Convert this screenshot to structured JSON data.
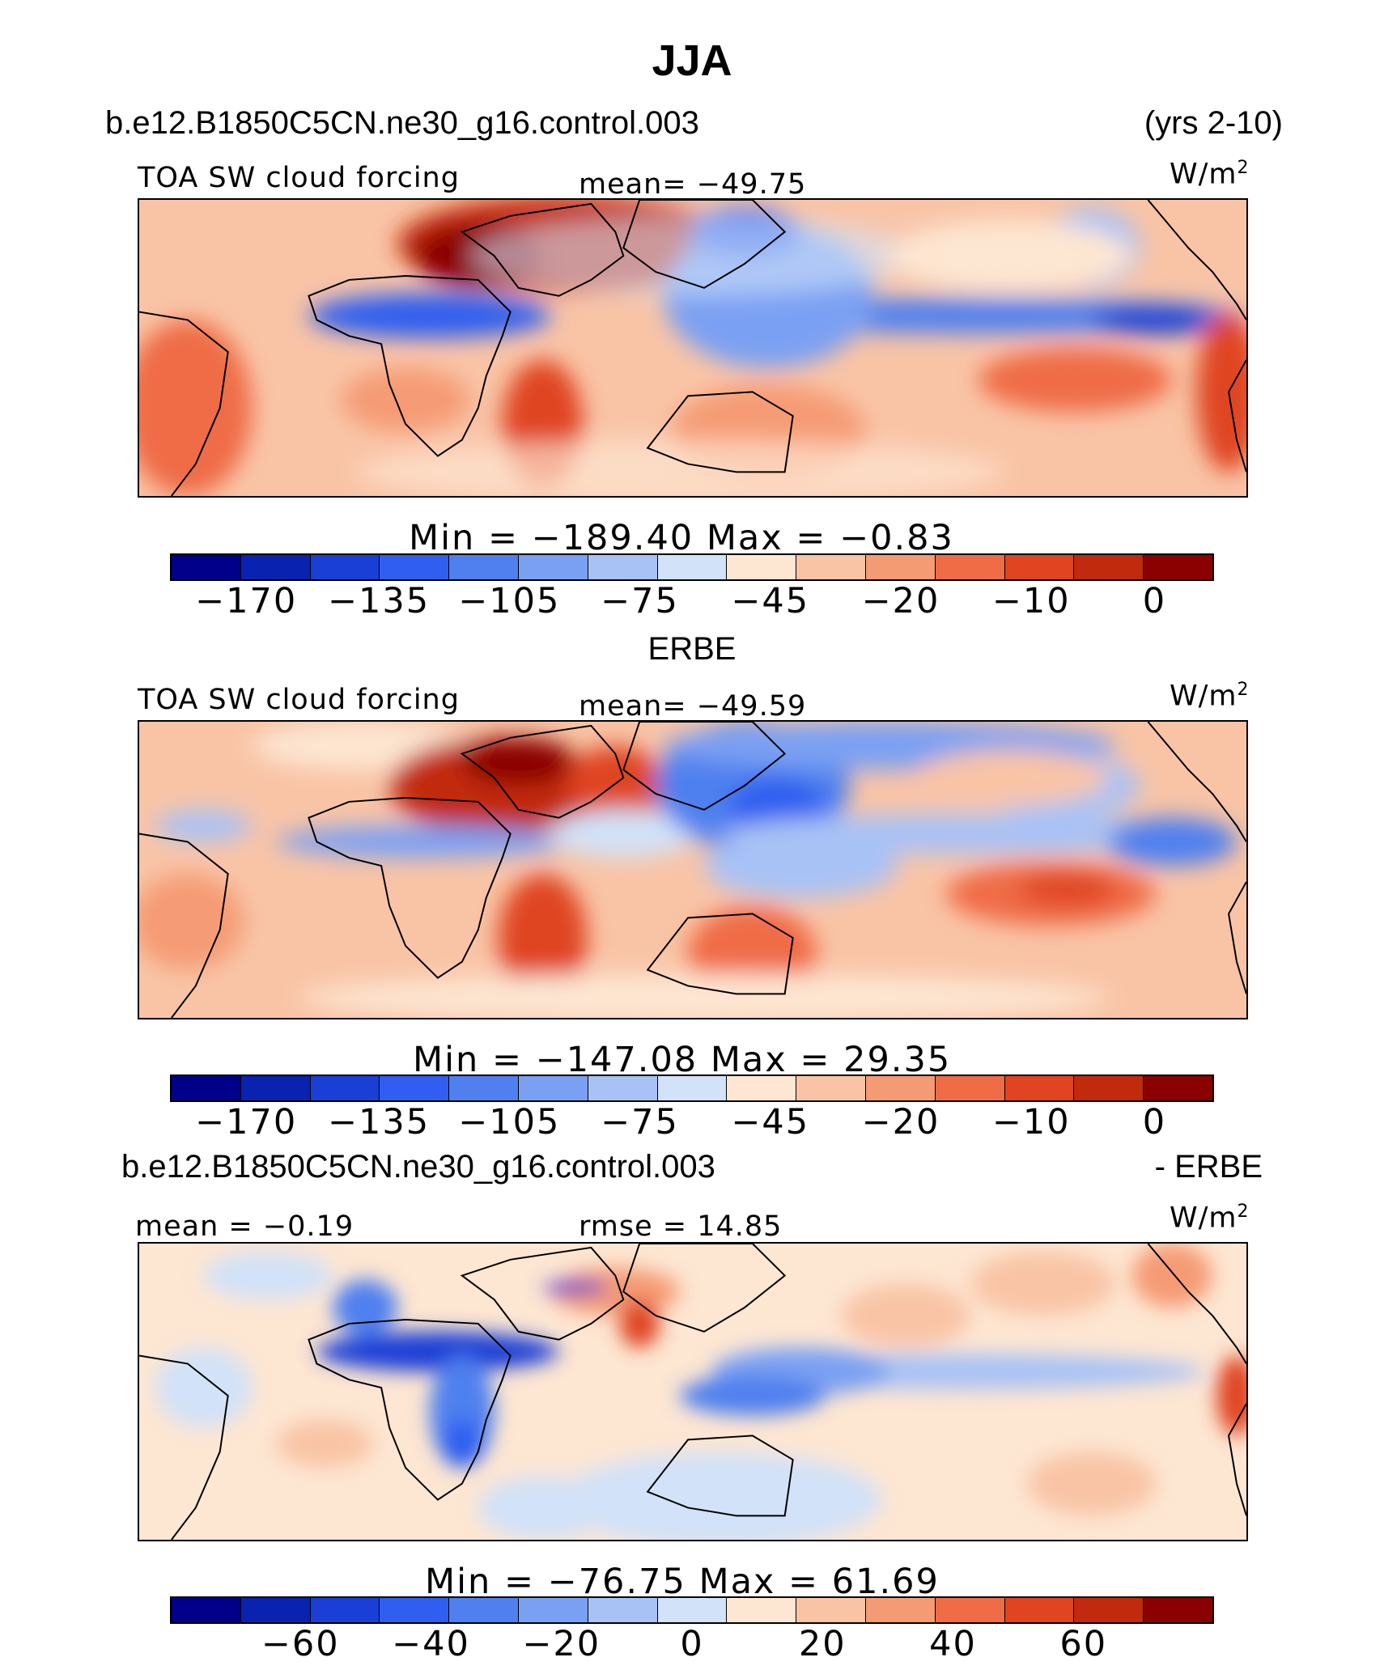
{
  "title": "JJA",
  "model_case": "b.e12.B1850C5CN.ne30_g16.control.003",
  "years": "(yrs 2-10)",
  "panels": [
    {
      "variable": "TOA SW cloud forcing",
      "mean_label": "mean= −49.75",
      "units": "W/m",
      "units_exp": "2",
      "minmax": "Min  =  −189.40  Max  =    −0.83",
      "colorbar_ticks": [
        "−170",
        "−135",
        "−105",
        "−75",
        "−45",
        "−20",
        "−10",
        "0"
      ]
    },
    {
      "heading": "ERBE",
      "variable": "TOA SW cloud forcing",
      "mean_label": "mean= −49.59",
      "units": "W/m",
      "units_exp": "2",
      "minmax": "Min  =  −147.08  Max  =    29.35",
      "colorbar_ticks": [
        "−170",
        "−135",
        "−105",
        "−75",
        "−45",
        "−20",
        "−10",
        "0"
      ]
    },
    {
      "heading_left": "b.e12.B1850C5CN.ne30_g16.control.003",
      "heading_right": "- ERBE",
      "mean_label": "mean  =   −0.19",
      "rmse_label": "rmse  =   14.85",
      "units": "W/m",
      "units_exp": "2",
      "minmax": "Min  =  −76.75  Max  =    61.69",
      "colorbar_ticks": [
        "−60",
        "−40",
        "−20",
        "0",
        "20",
        "40",
        "60"
      ]
    }
  ],
  "colorbar_colors": [
    "#00008b",
    "#0a22b0",
    "#1a3fd6",
    "#2f5ef0",
    "#5080ef",
    "#7aa0f3",
    "#a8c2f6",
    "#d2e2f8",
    "#fde6d2",
    "#f9c4a6",
    "#f59b74",
    "#ef6c46",
    "#e04420",
    "#c22a0e",
    "#8b0000"
  ]
}
